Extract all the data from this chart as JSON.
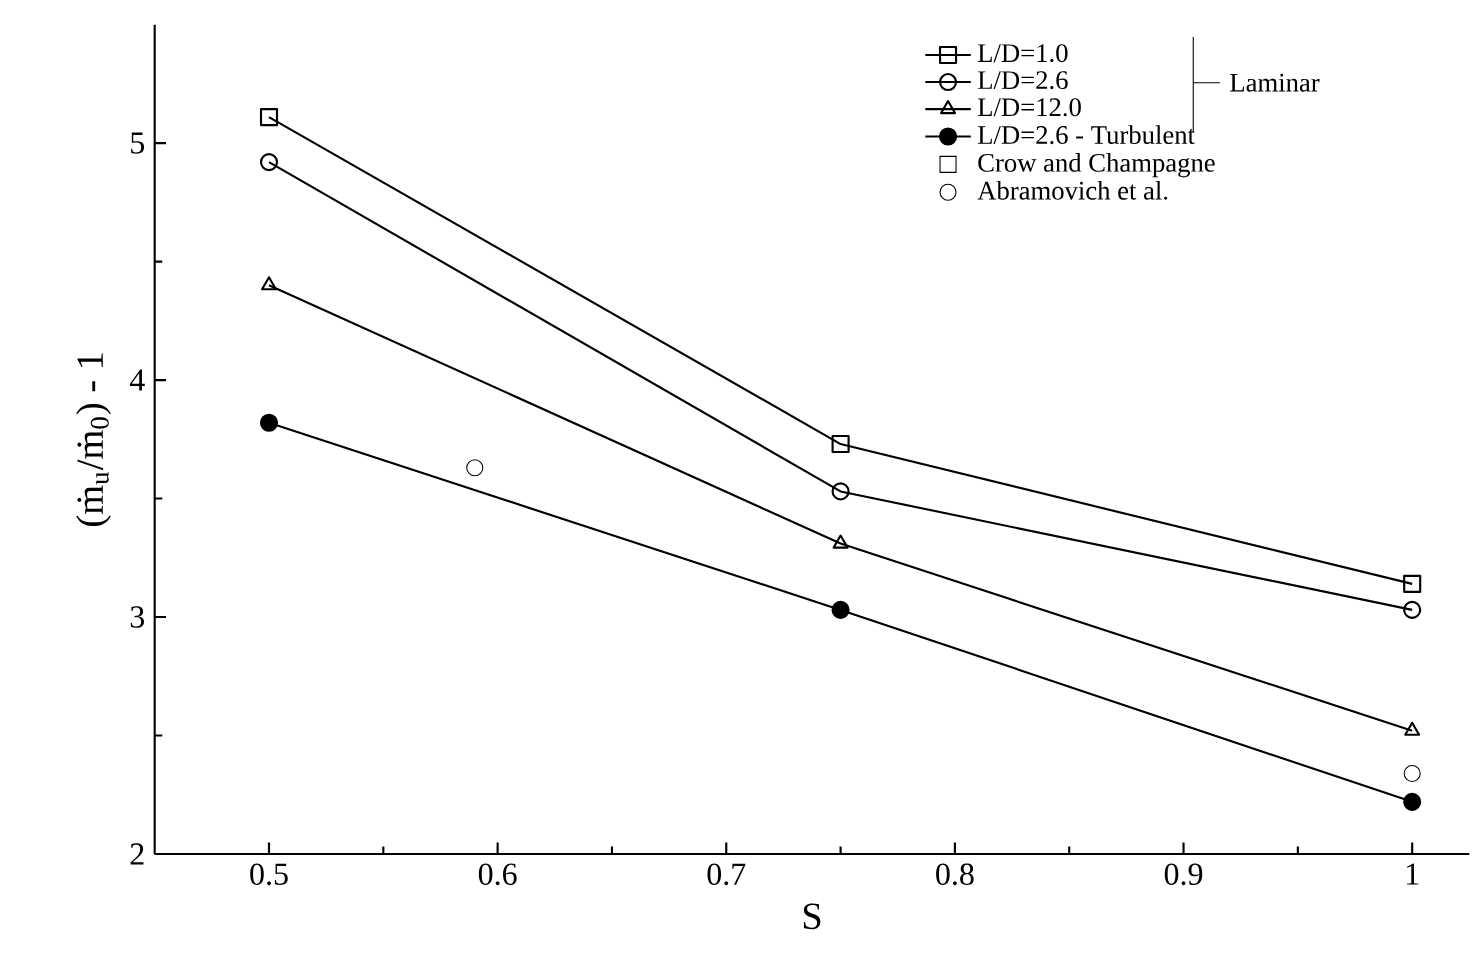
{
  "chart_data": {
    "type": "line",
    "xlabel": "S",
    "ylabel": "(ṁ$_{u}$/ṁ$_{0}$) - 1",
    "xlim": [
      0.45,
      1.025
    ],
    "ylim": [
      2,
      5.5
    ],
    "xticks": [
      0.5,
      0.6,
      0.7,
      0.8,
      0.9,
      {
        "value": 1,
        "label": "1"
      }
    ],
    "yticks": [
      2,
      3,
      4,
      5
    ],
    "grid": false,
    "legend": "top right",
    "line_style": "solid",
    "annotations": [
      "Laminar"
    ],
    "series": [
      {
        "name": "L/D=1.0",
        "color": "#000000",
        "marker": "square",
        "x": [
          0.5,
          0.75,
          1
        ],
        "values": [
          5.11,
          3.73,
          3.14
        ]
      },
      {
        "name": "L/D=2.6",
        "color": "#000000",
        "marker": "circle",
        "x": [
          0.5,
          0.75,
          1
        ],
        "values": [
          4.92,
          3.53,
          3.03
        ]
      },
      {
        "name": "L/D=12.0",
        "color": "#000000",
        "marker": "triangle",
        "x": [
          0.5,
          0.75,
          1
        ],
        "values": [
          4.4,
          3.31,
          2.52
        ]
      },
      {
        "name": "L/D=2.6 - Turbulent",
        "color": "#000000",
        "marker": "filled circle",
        "x": [
          0.5,
          0.75,
          1
        ],
        "values": [
          3.82,
          3.03,
          2.22
        ]
      },
      {
        "name": "Crow and Champagne",
        "type": "scatter",
        "color": "#000000",
        "marker": "square"
      },
      {
        "name": "Abramovich et al.",
        "type": "scatter",
        "color": "#000000",
        "marker": "circle",
        "x": [
          0.59,
          1
        ],
        "values": [
          3.63,
          2.34
        ]
      }
    ]
  }
}
